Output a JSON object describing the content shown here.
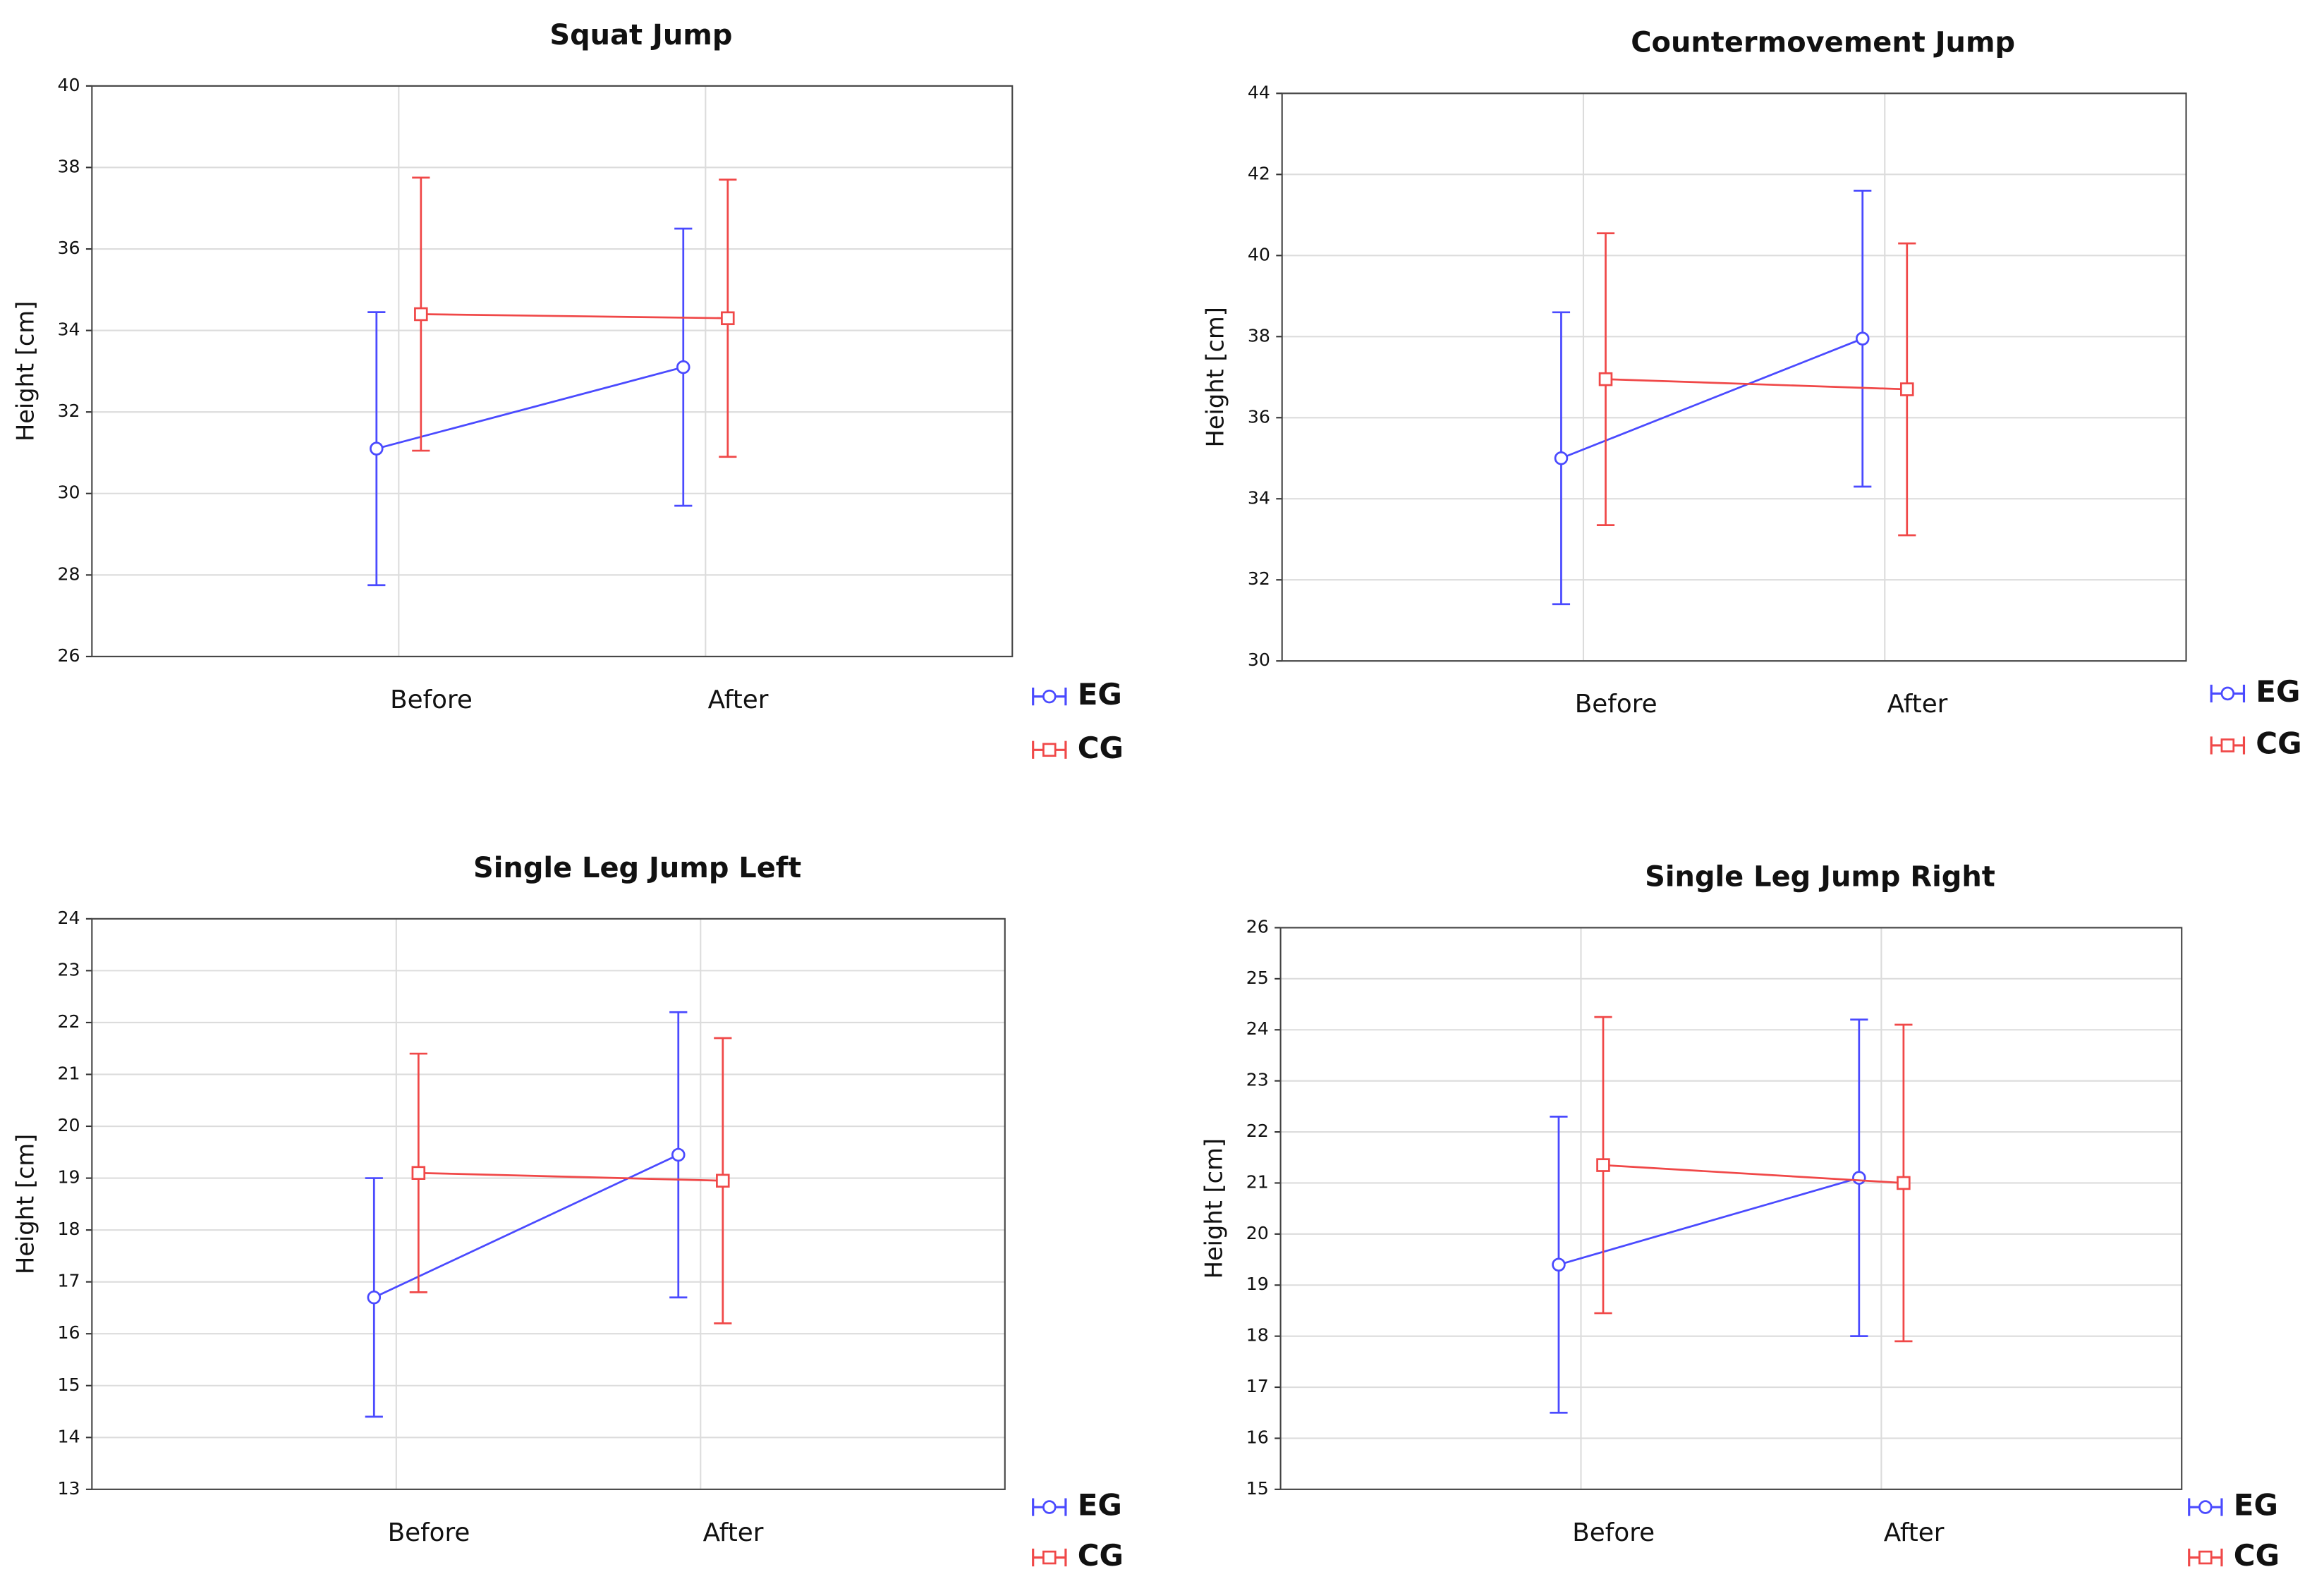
{
  "chart_data": [
    {
      "type": "line",
      "title": "Squat Jump",
      "ylabel": "Height [cm]",
      "categories": [
        "Before",
        "After"
      ],
      "series": [
        {
          "name": "EG",
          "color": "#4a4aff",
          "marker": "circle",
          "values": [
            31.1,
            33.1
          ],
          "errors": [
            3.35,
            3.4
          ]
        },
        {
          "name": "CG",
          "color": "#f04848",
          "marker": "square",
          "values": [
            34.4,
            34.3
          ],
          "errors": [
            3.35,
            3.4
          ]
        }
      ],
      "ylim": [
        26,
        40
      ],
      "yticks": [
        26,
        28,
        30,
        32,
        34,
        36,
        38,
        40
      ],
      "grid": true
    },
    {
      "type": "line",
      "title": "Countermovement Jump",
      "ylabel": "Height [cm]",
      "categories": [
        "Before",
        "After"
      ],
      "series": [
        {
          "name": "EG",
          "color": "#4a4aff",
          "marker": "circle",
          "values": [
            35.0,
            37.95
          ],
          "errors": [
            3.6,
            3.65
          ]
        },
        {
          "name": "CG",
          "color": "#f04848",
          "marker": "square",
          "values": [
            36.95,
            36.7
          ],
          "errors": [
            3.6,
            3.6
          ]
        }
      ],
      "ylim": [
        30,
        44
      ],
      "yticks": [
        30,
        32,
        34,
        36,
        38,
        40,
        42,
        44
      ],
      "grid": true
    },
    {
      "type": "line",
      "title": "Single Leg Jump Left",
      "ylabel": "Height [cm]",
      "categories": [
        "Before",
        "After"
      ],
      "series": [
        {
          "name": "EG",
          "color": "#4a4aff",
          "marker": "circle",
          "values": [
            16.7,
            19.45
          ],
          "errors": [
            2.3,
            2.75
          ]
        },
        {
          "name": "CG",
          "color": "#f04848",
          "marker": "square",
          "values": [
            19.1,
            18.95
          ],
          "errors": [
            2.3,
            2.75
          ]
        }
      ],
      "ylim": [
        13,
        24
      ],
      "yticks": [
        13,
        14,
        15,
        16,
        17,
        18,
        19,
        20,
        21,
        22,
        23,
        24
      ],
      "grid": true
    },
    {
      "type": "line",
      "title": "Single Leg Jump Right",
      "ylabel": "Height [cm]",
      "categories": [
        "Before",
        "After"
      ],
      "series": [
        {
          "name": "EG",
          "color": "#4a4aff",
          "marker": "circle",
          "values": [
            19.4,
            21.1
          ],
          "errors": [
            2.9,
            3.1
          ]
        },
        {
          "name": "CG",
          "color": "#f04848",
          "marker": "square",
          "values": [
            21.35,
            21.0
          ],
          "errors": [
            2.9,
            3.1
          ]
        }
      ],
      "ylim": [
        15,
        26
      ],
      "yticks": [
        15,
        16,
        17,
        18,
        19,
        20,
        21,
        22,
        23,
        24,
        25,
        26
      ],
      "grid": true
    }
  ]
}
